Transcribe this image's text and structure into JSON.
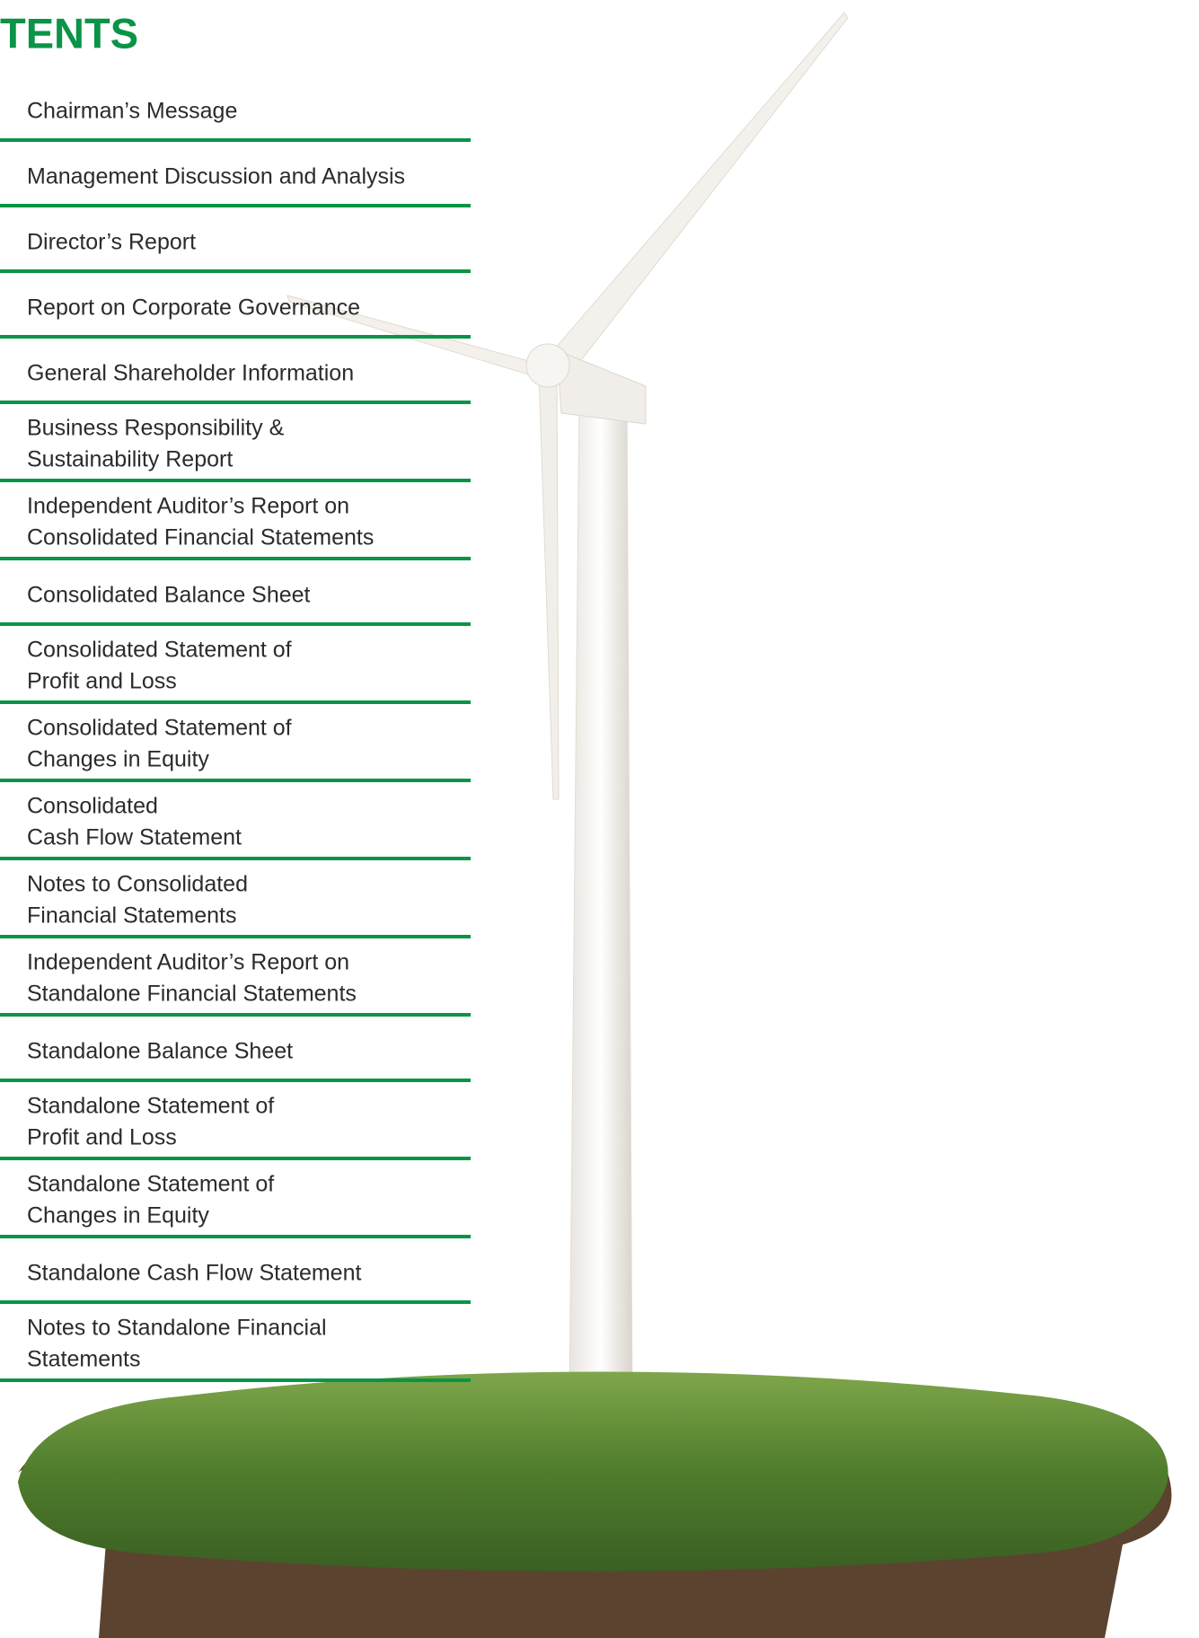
{
  "header": {
    "title": "TENTS"
  },
  "items": [
    [
      "Chairman’s Message"
    ],
    [
      "Management Discussion and Analysis"
    ],
    [
      "Director’s Report"
    ],
    [
      "Report on Corporate Governance"
    ],
    [
      "General Shareholder Information"
    ],
    [
      "Business Responsibility &",
      "Sustainability Report"
    ],
    [
      "Independent Auditor’s Report on",
      "Consolidated Financial Statements"
    ],
    [
      "Consolidated Balance Sheet"
    ],
    [
      "Consolidated Statement of",
      "Profit and Loss"
    ],
    [
      "Consolidated Statement of",
      "Changes in Equity"
    ],
    [
      "Consolidated",
      "Cash Flow Statement"
    ],
    [
      "Notes to Consolidated",
      "Financial Statements"
    ],
    [
      "Independent Auditor’s Report on",
      "Standalone Financial Statements"
    ],
    [
      "Standalone Balance Sheet"
    ],
    [
      "Standalone Statement of",
      "Profit and Loss"
    ],
    [
      "Standalone Statement of",
      "Changes in Equity"
    ],
    [
      "Standalone Cash Flow Statement"
    ],
    [
      "Notes to Standalone Financial",
      "Statements"
    ]
  ]
}
